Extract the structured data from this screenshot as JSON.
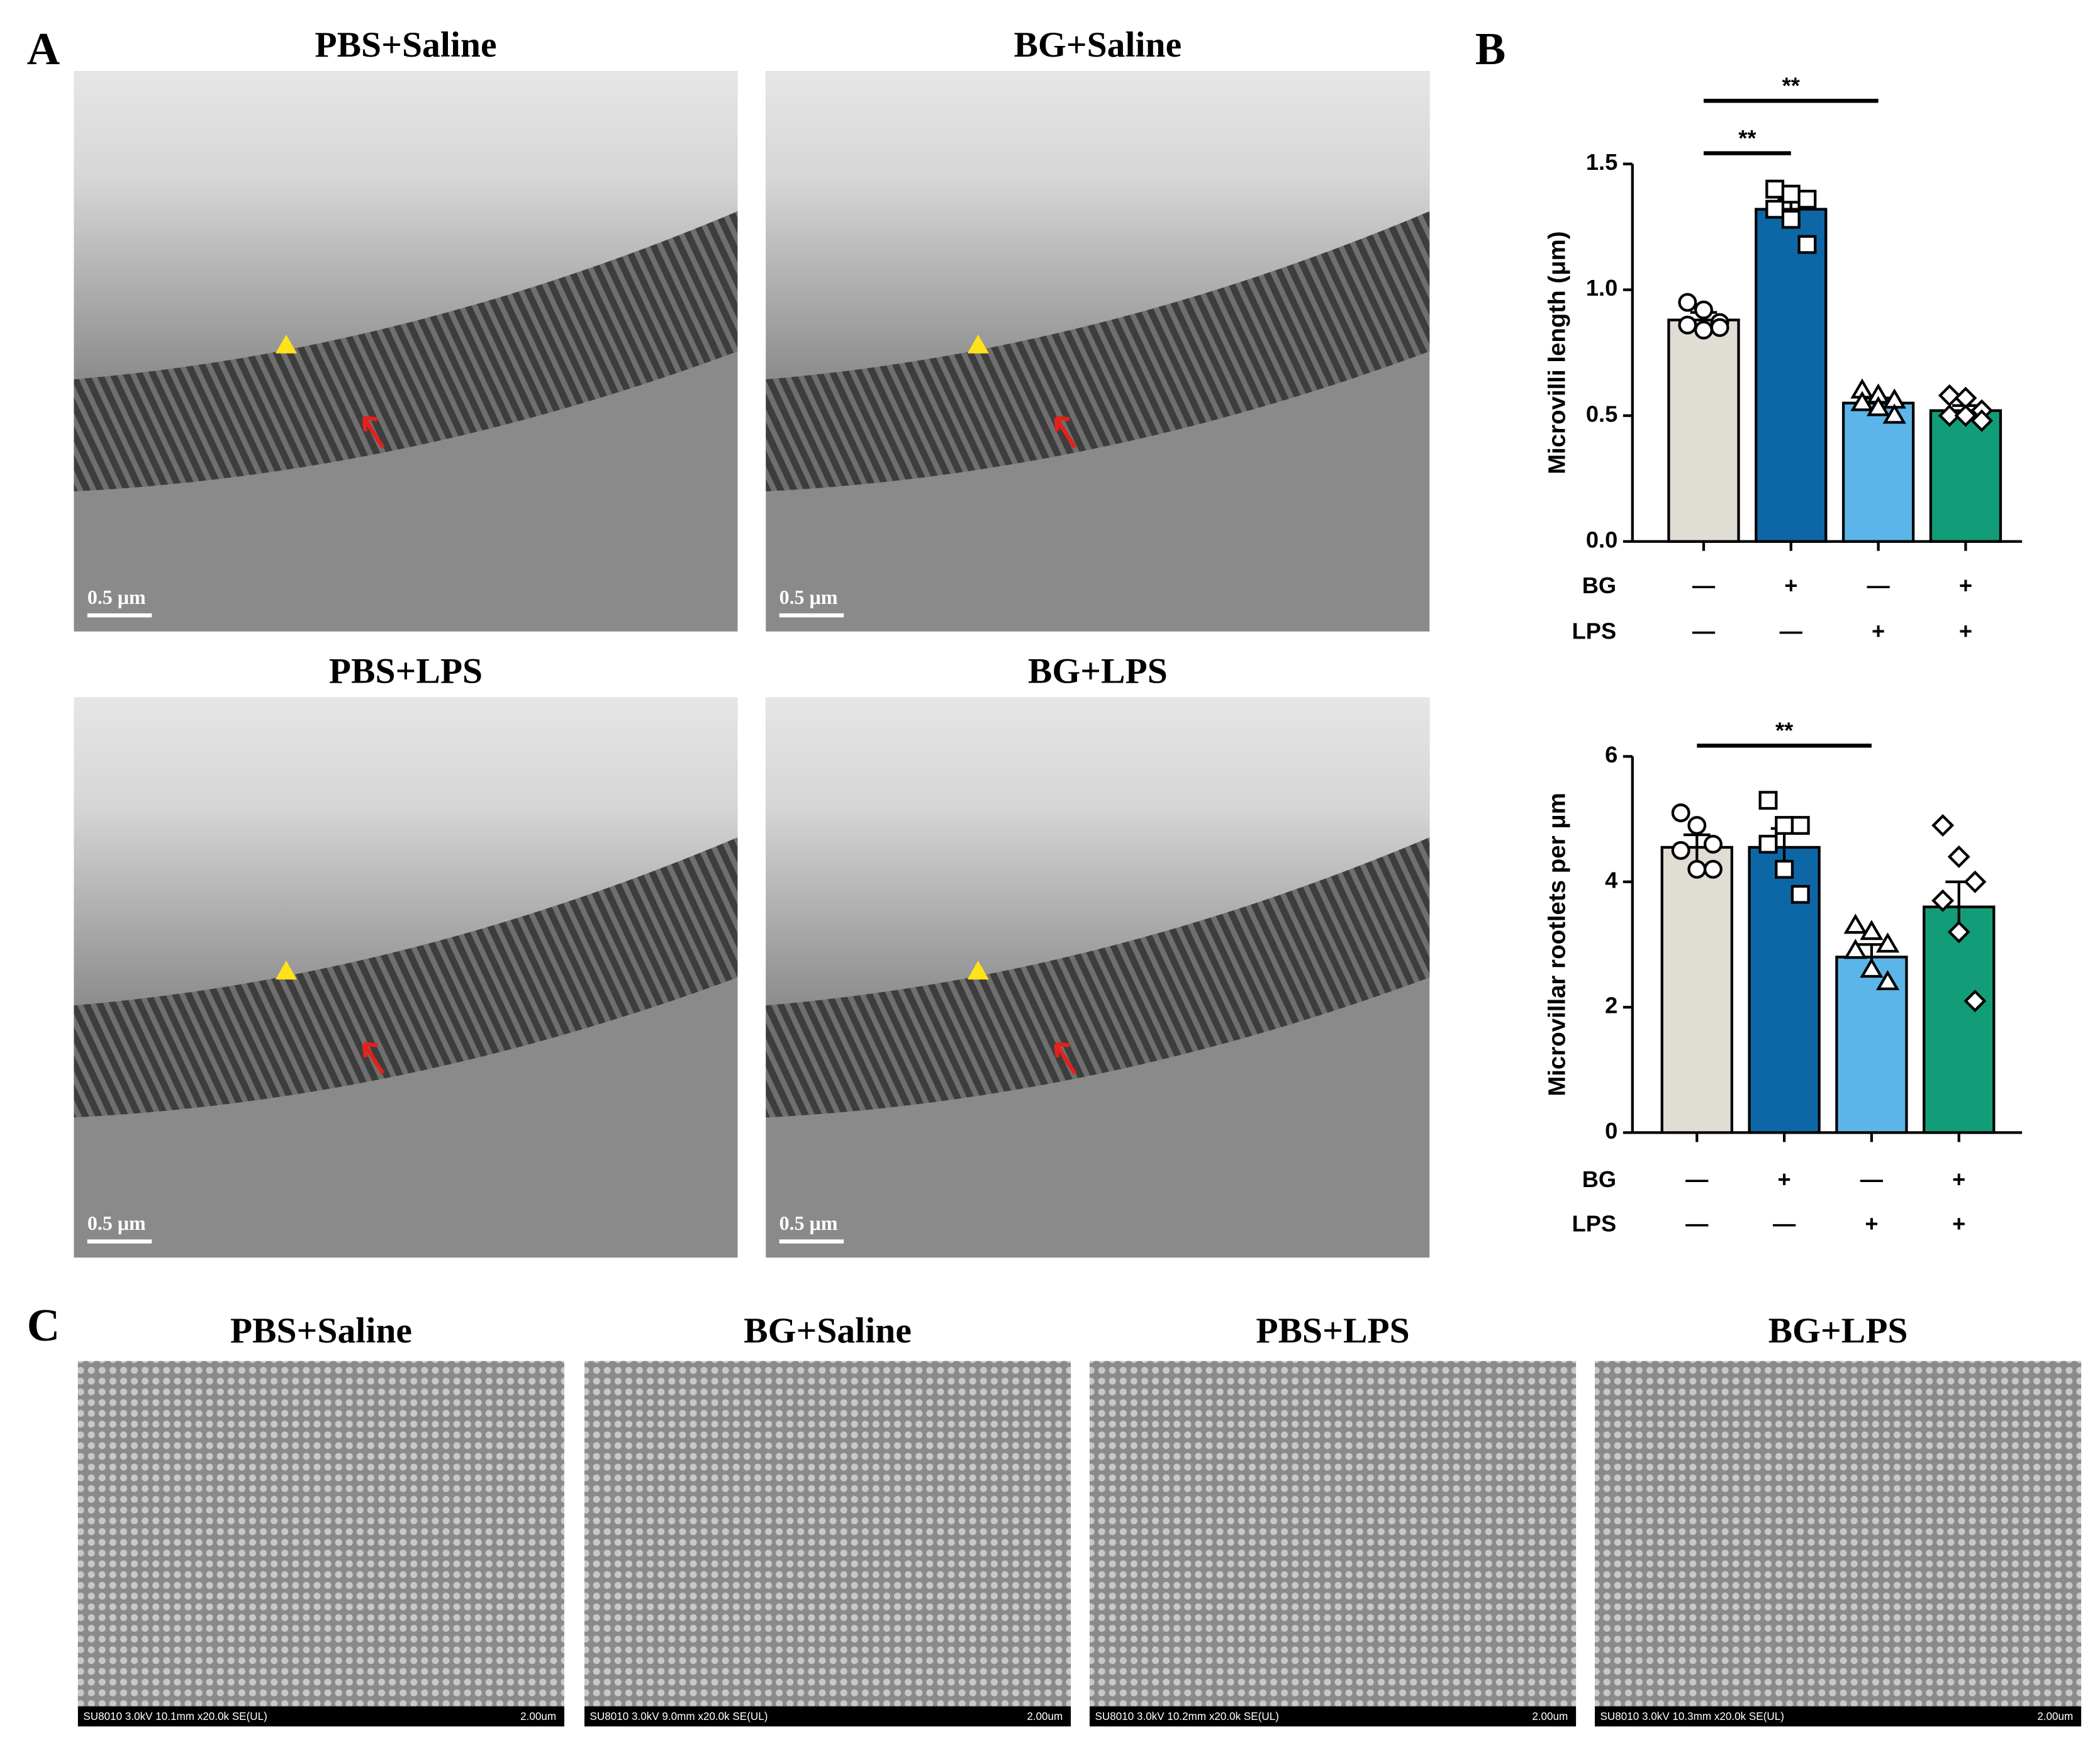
{
  "panels": {
    "A": {
      "label": "A",
      "images": [
        {
          "title": "PBS+Saline",
          "scale": "0.5 μm"
        },
        {
          "title": "BG+Saline",
          "scale": "0.5 μm"
        },
        {
          "title": "PBS+LPS",
          "scale": "0.5 μm"
        },
        {
          "title": "BG+LPS",
          "scale": "0.5 μm"
        }
      ]
    },
    "B": {
      "label": "B"
    },
    "C": {
      "label": "C",
      "images": [
        {
          "title": "PBS+Saline",
          "info": "SU8010 3.0kV 10.1mm x20.0k SE(UL)",
          "scale": "2.00um"
        },
        {
          "title": "BG+Saline",
          "info": "SU8010 3.0kV 9.0mm x20.0k SE(UL)",
          "scale": "2.00um"
        },
        {
          "title": "PBS+LPS",
          "info": "SU8010 3.0kV 10.2mm x20.0k SE(UL)",
          "scale": "2.00um"
        },
        {
          "title": "BG+LPS",
          "info": "SU8010 3.0kV 10.3mm x20.0k SE(UL)",
          "scale": "2.00um"
        }
      ]
    }
  },
  "chart_data": [
    {
      "type": "bar",
      "y_label": "Microvilli length (μm)",
      "ylim": [
        0,
        1.5
      ],
      "yticks": [
        {
          "value": 0,
          "label": "0.0"
        },
        0.5,
        {
          "value": 1,
          "label": "1.0"
        },
        1.5
      ],
      "row_labels": [
        "BG",
        "LPS"
      ],
      "rows": [
        [
          "—",
          "+",
          "—",
          "+"
        ],
        [
          "—",
          "—",
          "+",
          "+"
        ]
      ],
      "values": [
        0.88,
        1.32,
        0.55,
        0.52
      ],
      "errors": [
        0.03,
        0.04,
        0.02,
        0.02
      ],
      "colors": [
        "#e0ddd5",
        "#0d67a6",
        "#5cb5e8",
        "#139c78"
      ],
      "markers": [
        "circle",
        "square",
        "triangle",
        "diamond"
      ],
      "points": [
        [
          0.95,
          0.92,
          0.87,
          0.86,
          0.84,
          0.85
        ],
        [
          1.4,
          1.38,
          1.36,
          1.32,
          1.28,
          1.18
        ],
        [
          0.6,
          0.58,
          0.56,
          0.55,
          0.53,
          0.5
        ],
        [
          0.58,
          0.57,
          0.52,
          0.5,
          0.5,
          0.48
        ]
      ],
      "significance": [
        {
          "from": 0,
          "to": 1,
          "label": "**"
        },
        {
          "from": 0,
          "to": 2,
          "label": "**"
        }
      ]
    },
    {
      "type": "bar",
      "y_label": "Microvillar rootlets per μm",
      "ylim": [
        0,
        6
      ],
      "yticks": [
        0,
        2,
        4,
        6
      ],
      "row_labels": [
        "BG",
        "LPS"
      ],
      "rows": [
        [
          "—",
          "+",
          "—",
          "+"
        ],
        [
          "—",
          "—",
          "+",
          "+"
        ]
      ],
      "values": [
        4.55,
        4.55,
        2.8,
        3.6
      ],
      "errors": [
        0.2,
        0.3,
        0.2,
        0.4
      ],
      "colors": [
        "#e0ddd5",
        "#0d67a6",
        "#5cb5e8",
        "#139c78"
      ],
      "markers": [
        "circle",
        "square",
        "triangle",
        "diamond"
      ],
      "points": [
        [
          5.1,
          4.9,
          4.6,
          4.5,
          4.2,
          4.2
        ],
        [
          5.3,
          4.9,
          4.9,
          4.6,
          4.2,
          3.8
        ],
        [
          3.3,
          3.2,
          3.0,
          2.9,
          2.6,
          2.4
        ],
        [
          4.9,
          4.4,
          4.0,
          3.7,
          3.2,
          2.1
        ]
      ],
      "significance": [
        {
          "from": 0,
          "to": 2,
          "label": "**"
        }
      ]
    }
  ]
}
